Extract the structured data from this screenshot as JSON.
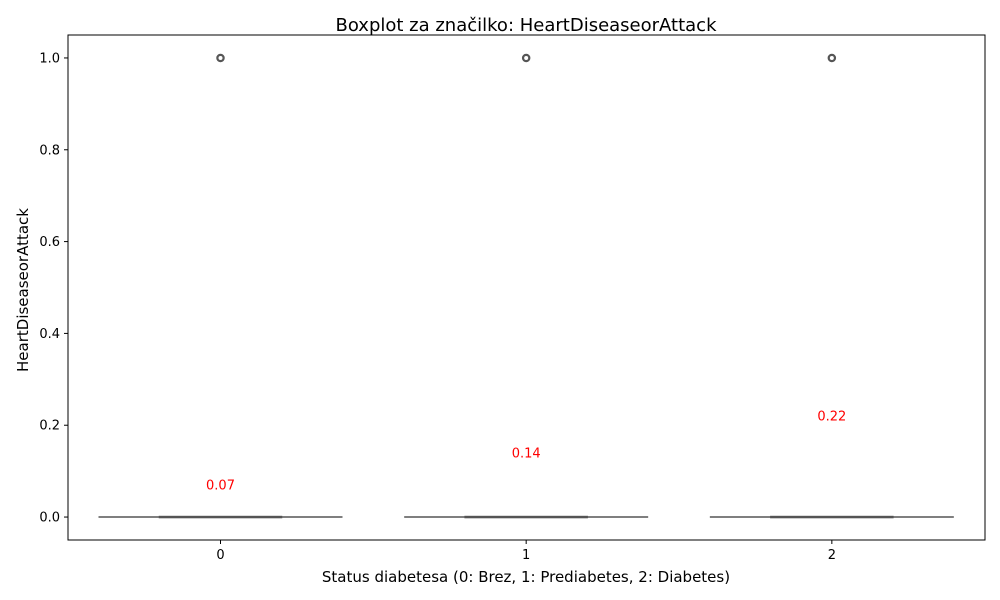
{
  "chart_data": {
    "type": "box",
    "title": "Boxplot za značilko: HeartDiseaseorAttack",
    "xlabel": "Status diabetesa (0: Brez, 1: Prediabetes, 2: Diabetes)",
    "ylabel": "HeartDiseaseorAttack",
    "categories": [
      "0",
      "1",
      "2"
    ],
    "ylim": [
      -0.05,
      1.05
    ],
    "yticks": [
      0.0,
      0.2,
      0.4,
      0.6,
      0.8,
      1.0
    ],
    "ytick_labels": [
      "0.0",
      "0.2",
      "0.4",
      "0.6",
      "0.8",
      "1.0"
    ],
    "grid": false,
    "boxes": [
      {
        "category": "0",
        "min": 0,
        "q1": 0,
        "median": 0,
        "q3": 0,
        "max": 0,
        "outliers": [
          1.0
        ],
        "mean": 0.07,
        "mean_label": "0.07"
      },
      {
        "category": "1",
        "min": 0,
        "q1": 0,
        "median": 0,
        "q3": 0,
        "max": 0,
        "outliers": [
          1.0
        ],
        "mean": 0.14,
        "mean_label": "0.14"
      },
      {
        "category": "2",
        "min": 0,
        "q1": 0,
        "median": 0,
        "q3": 0,
        "max": 0,
        "outliers": [
          1.0
        ],
        "mean": 0.22,
        "mean_label": "0.22"
      }
    ],
    "colors": {
      "box": "#555555",
      "outlier": "#555555",
      "mean_label": "#ff0000",
      "axis": "#000000"
    }
  }
}
